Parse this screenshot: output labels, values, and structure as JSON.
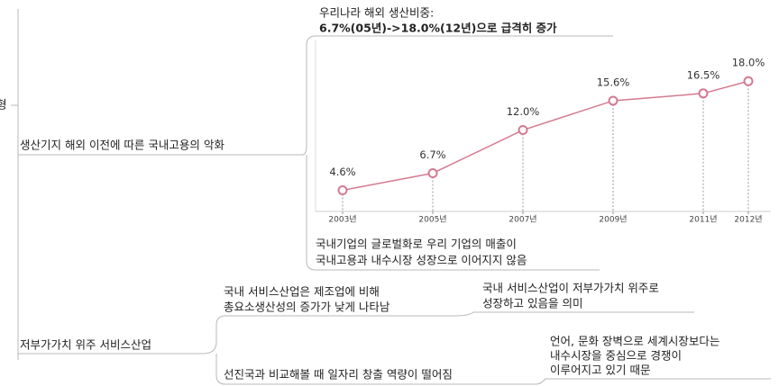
{
  "root": "형",
  "nodes": [
    {
      "lines": [
        "생산기지 해외 이전에 따른 국내고용의 악화"
      ]
    },
    {
      "lines": [
        "국내기업의 글로벌화로 우리 기업의 매출이",
        "국내고용과 내수시장 성장으로 이어지지 않음"
      ]
    },
    {
      "lines": [
        "저부가가치 위주 서비스산업"
      ]
    },
    {
      "lines": [
        "국내 서비스산업은 제조업에 비해",
        "총요소생산성의 증가가 낮게 나타남"
      ]
    },
    {
      "lines": [
        "국내 서비스산업이 저부가가치 위주로",
        "성장하고 있음을 의미"
      ]
    },
    {
      "lines": [
        "선진국과 비교해볼 때 일자리 창출 역량이 떨어짐"
      ]
    },
    {
      "lines": [
        "언어, 문화 장벽으로 세계시장보다는",
        "내수시장을 중심으로 경쟁이",
        "이루어지고 있기 때문"
      ]
    }
  ],
  "chart_data": {
    "type": "line",
    "title": "우리나라 해외 생산비중:",
    "subtitle": "6.7%(05년)->18.0%(12년)으로 급격히 증가",
    "x": [
      2003,
      2005,
      2007,
      2009,
      2011,
      2012
    ],
    "xticks": [
      {
        "value": 2003,
        "label": "2003년"
      },
      {
        "value": 2005,
        "label": "2005년"
      },
      {
        "value": 2007,
        "label": "2007년"
      },
      {
        "value": 2009,
        "label": "2009년"
      },
      {
        "value": 2011,
        "label": "2011년"
      },
      {
        "value": 2012,
        "label": "2012년"
      }
    ],
    "xlim": [
      2002.4,
      2012.5
    ],
    "ylim": [
      2,
      23
    ],
    "values": [
      4.6,
      6.7,
      12.0,
      15.6,
      16.5,
      18.0
    ],
    "value_labels": [
      "4.6%",
      "6.7%",
      "12.0%",
      "15.6%",
      "16.5%",
      "18.0%"
    ],
    "color": "#d47a90"
  }
}
